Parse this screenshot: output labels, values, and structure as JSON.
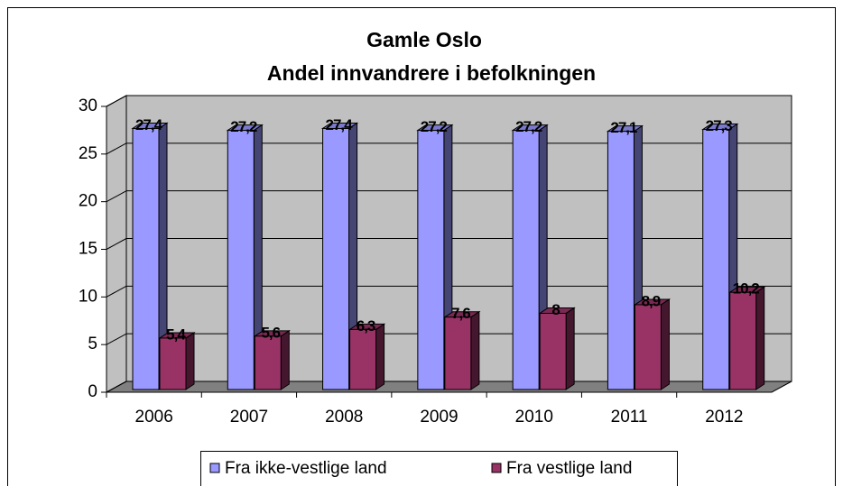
{
  "chart_data": {
    "type": "bar3d",
    "title": "Gamle Oslo",
    "subtitle": "Andel innvandrere i befolkningen",
    "categories": [
      "2006",
      "2007",
      "2008",
      "2009",
      "2010",
      "2011",
      "2012"
    ],
    "series": [
      {
        "name": "Fra ikke-vestlige land",
        "color": "#9999ff",
        "values": [
          27.4,
          27.2,
          27.4,
          27.2,
          27.2,
          27.1,
          27.3
        ],
        "value_labels": [
          "27,4",
          "27,2",
          "27,4",
          "27,2",
          "27,2",
          "27,1",
          "27,3"
        ]
      },
      {
        "name": "Fra vestlige land",
        "color": "#993366",
        "values": [
          5.4,
          5.6,
          6.3,
          7.6,
          8,
          8.9,
          10.2
        ],
        "value_labels": [
          "5,4",
          "5,6",
          "6,3",
          "7,6",
          "8",
          "8,9",
          "10,2"
        ]
      }
    ],
    "ylim": [
      0,
      30
    ],
    "yticks": [
      0,
      5,
      10,
      15,
      20,
      25,
      30
    ],
    "grid": true
  }
}
